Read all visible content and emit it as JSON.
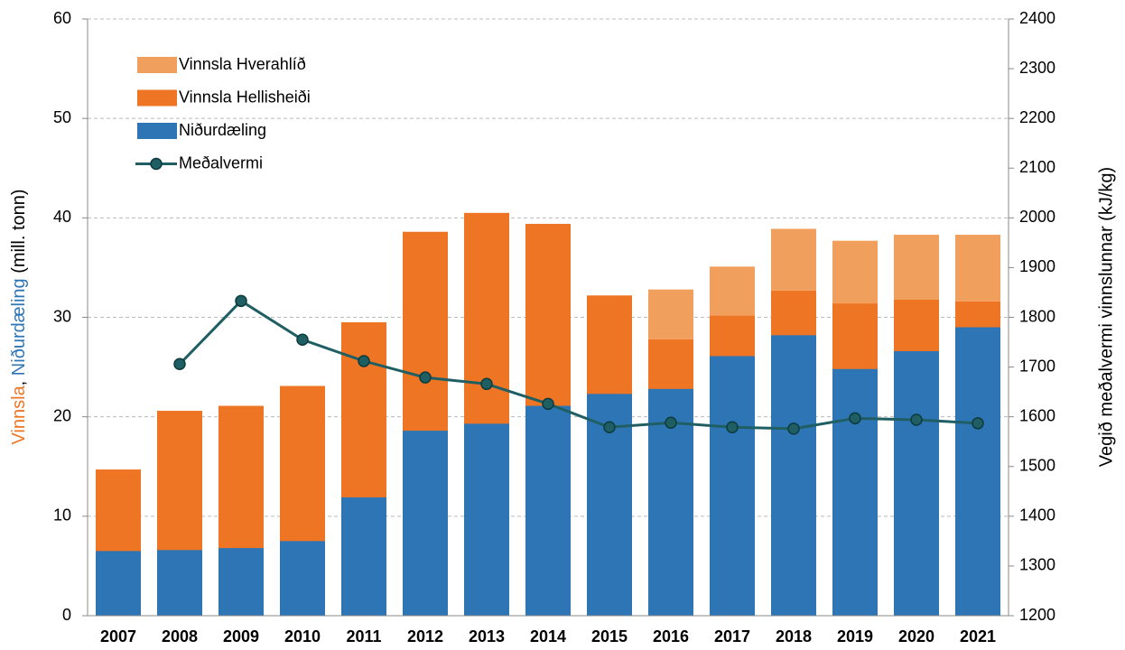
{
  "chart_data": {
    "type": "bar",
    "categories": [
      "2007",
      "2008",
      "2009",
      "2010",
      "2011",
      "2012",
      "2013",
      "2014",
      "2015",
      "2016",
      "2017",
      "2018",
      "2019",
      "2020",
      "2021"
    ],
    "series": [
      {
        "name": "Vinnsla Hellisheiði",
        "color": "#ee7524",
        "values": [
          14.7,
          20.6,
          21.1,
          23.1,
          29.5,
          38.6,
          40.5,
          39.4,
          32.2,
          27.8,
          30.2,
          32.7,
          31.4,
          31.8,
          31.6
        ]
      },
      {
        "name": "Vinnsla Hverahlíð",
        "color": "#f19f5d",
        "values": [
          null,
          null,
          null,
          null,
          null,
          null,
          null,
          null,
          null,
          5.0,
          4.9,
          6.2,
          6.3,
          6.5,
          6.7
        ]
      },
      {
        "name": "Niðurdæling",
        "color": "#2e75b6",
        "values": [
          6.5,
          6.6,
          6.8,
          7.5,
          11.9,
          18.6,
          19.3,
          21.1,
          22.3,
          22.8,
          26.1,
          28.2,
          24.8,
          26.6,
          29.0
        ]
      },
      {
        "name": "Meðalvermi",
        "color": "#1f5f63",
        "type": "line",
        "axis": "y2",
        "values": [
          null,
          1706,
          1833,
          1755,
          1712,
          1679,
          1666,
          1626,
          1579,
          1588,
          1579,
          1576,
          1597,
          1594,
          1587
        ]
      }
    ],
    "legend_order": [
      1,
      0,
      2,
      3
    ],
    "ylabel_parts": [
      {
        "text": "Vinnsla",
        "color": "#ee7524"
      },
      {
        "text": ", ",
        "color": "#000000"
      },
      {
        "text": "Niðurdæling",
        "color": "#2e75b6"
      },
      {
        "text": " (mill. tonn)",
        "color": "#000000"
      }
    ],
    "y2label": "Vegið meðalvermi vinnslunnar (kJ/kg)",
    "y2label_color": "#b8961e",
    "ylim": [
      0,
      60
    ],
    "yticks": [
      0,
      10,
      20,
      30,
      40,
      50,
      60
    ],
    "y2lim": [
      1200,
      2400
    ],
    "y2ticks": [
      1200,
      1300,
      1400,
      1500,
      1600,
      1700,
      1800,
      1900,
      2000,
      2100,
      2200,
      2300,
      2400
    ],
    "grid": true,
    "legend": "upper left"
  }
}
